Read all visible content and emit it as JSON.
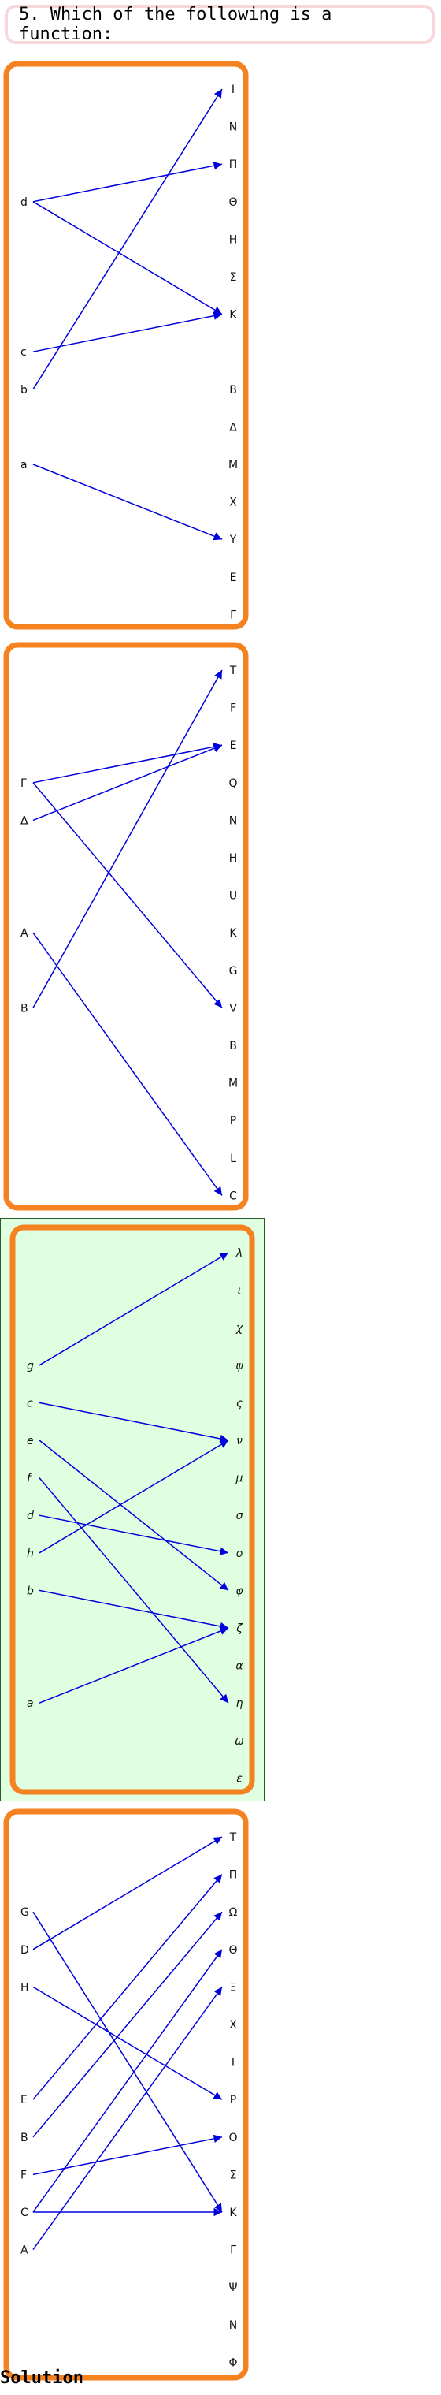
{
  "question": {
    "text": "5. Which of the following is a function:"
  },
  "solution_label": "Solution",
  "colors": {
    "panel_border": "#f58220",
    "arrow": "#0000dd",
    "highlight_bg": "#e0ffe0",
    "question_border": "#f8d7da"
  },
  "diagrams": [
    {
      "highlighted": false,
      "italic": false,
      "left": [
        {
          "label": "d",
          "row": 3
        },
        {
          "label": "c",
          "row": 7
        },
        {
          "label": "b",
          "row": 8
        },
        {
          "label": "a",
          "row": 10
        }
      ],
      "right": [
        "I",
        "N",
        "Π",
        "Θ",
        "H",
        "Σ",
        "K",
        "",
        "B",
        "Δ",
        "M",
        "X",
        "Y",
        "E",
        "Γ"
      ],
      "arrows": [
        [
          "d",
          "Π"
        ],
        [
          "d",
          "K"
        ],
        [
          "c",
          "K"
        ],
        [
          "b",
          "I"
        ],
        [
          "a",
          "Y"
        ]
      ]
    },
    {
      "highlighted": false,
      "italic": false,
      "left": [
        {
          "label": "Γ",
          "row": 3
        },
        {
          "label": "Δ",
          "row": 4
        },
        {
          "label": "A",
          "row": 7
        },
        {
          "label": "B",
          "row": 9
        }
      ],
      "right": [
        "T",
        "F",
        "E",
        "Q",
        "N",
        "H",
        "U",
        "K",
        "G",
        "V",
        "B",
        "M",
        "P",
        "L",
        "C"
      ],
      "arrows": [
        [
          "Γ",
          "E"
        ],
        [
          "Γ",
          "V"
        ],
        [
          "Δ",
          "E"
        ],
        [
          "A",
          "C"
        ],
        [
          "B",
          "T"
        ]
      ]
    },
    {
      "highlighted": true,
      "italic": true,
      "left": [
        {
          "label": "g",
          "row": 3
        },
        {
          "label": "c",
          "row": 4
        },
        {
          "label": "e",
          "row": 5
        },
        {
          "label": "f",
          "row": 6
        },
        {
          "label": "d",
          "row": 7
        },
        {
          "label": "h",
          "row": 8
        },
        {
          "label": "b",
          "row": 9
        },
        {
          "label": "a",
          "row": 12
        }
      ],
      "right": [
        "λ",
        "ι",
        "χ",
        "ψ",
        "ς",
        "ν",
        "μ",
        "σ",
        "ο",
        "φ",
        "ζ",
        "α",
        "η",
        "ω",
        "ε"
      ],
      "arrows": [
        [
          "g",
          "λ"
        ],
        [
          "c",
          "ν"
        ],
        [
          "e",
          "φ"
        ],
        [
          "f",
          "η"
        ],
        [
          "d",
          "ο"
        ],
        [
          "h",
          "ν"
        ],
        [
          "b",
          "ζ"
        ],
        [
          "a",
          "ζ"
        ]
      ]
    },
    {
      "highlighted": false,
      "italic": false,
      "left": [
        {
          "label": "G",
          "row": 2
        },
        {
          "label": "D",
          "row": 3
        },
        {
          "label": "H",
          "row": 4
        },
        {
          "label": "E",
          "row": 7
        },
        {
          "label": "B",
          "row": 8
        },
        {
          "label": "F",
          "row": 9
        },
        {
          "label": "C",
          "row": 10
        },
        {
          "label": "A",
          "row": 11
        }
      ],
      "right": [
        "T",
        "Π",
        "Ω",
        "Θ",
        "Ξ",
        "X",
        "I",
        "P",
        "O",
        "Σ",
        "K",
        "Γ",
        "Ψ",
        "N",
        "Φ"
      ],
      "arrows": [
        [
          "G",
          "K"
        ],
        [
          "D",
          "T"
        ],
        [
          "H",
          "P"
        ],
        [
          "E",
          "Π"
        ],
        [
          "B",
          "Ω"
        ],
        [
          "F",
          "O"
        ],
        [
          "C",
          "Θ"
        ],
        [
          "C",
          "K"
        ],
        [
          "A",
          "Ξ"
        ]
      ]
    }
  ]
}
